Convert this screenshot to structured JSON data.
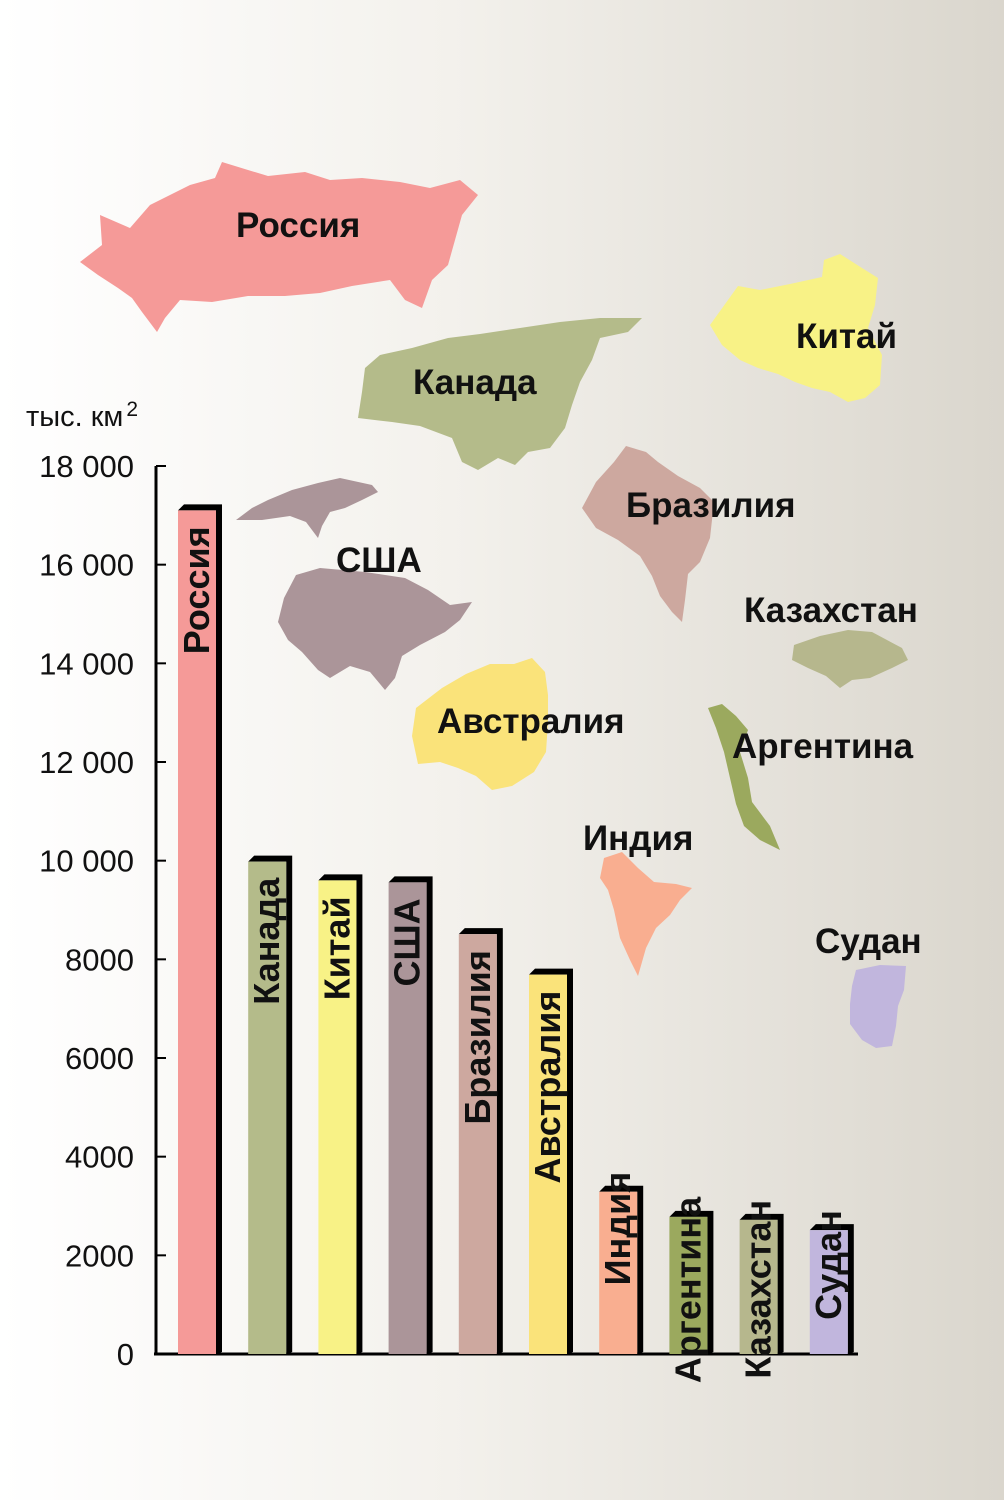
{
  "chart_data": {
    "type": "bar",
    "unit_label": "тыс. км",
    "unit_superscript": "2",
    "ylim": [
      0,
      18000
    ],
    "yticks": [
      0,
      2000,
      4000,
      6000,
      8000,
      10000,
      12000,
      14000,
      16000,
      18000
    ],
    "ytick_labels": [
      "0",
      "2000",
      "4000",
      "6000",
      "8000",
      "10 000",
      "12 000",
      "14 000",
      "16 000",
      "18 000"
    ],
    "categories": [
      "Россия",
      "Канада",
      "Китай",
      "США",
      "Бразилия",
      "Австралия",
      "Индия",
      "Аргентина",
      "Казахстан",
      "Судан"
    ],
    "values": [
      17100,
      9980,
      9600,
      9560,
      8510,
      7690,
      3290,
      2780,
      2720,
      2510
    ],
    "colors": [
      "#f59a98",
      "#b4bb8a",
      "#f8f286",
      "#ab9599",
      "#cda89f",
      "#fae37a",
      "#f9ae90",
      "#9ba95e",
      "#b6b78d",
      "#c1b6dd"
    ],
    "label_position": [
      "inside",
      "inside",
      "inside",
      "inside",
      "inside",
      "inside",
      "above",
      "above",
      "above",
      "above"
    ]
  },
  "map_labels": [
    "Россия",
    "Канада",
    "Китай",
    "США",
    "Бразилия",
    "Казахстан",
    "Австралия",
    "Аргентина",
    "Индия",
    "Судан"
  ],
  "map_colors": {
    "russia": "#f59a98",
    "canada": "#b4bb8a",
    "china": "#f8f286",
    "usa": "#ab9599",
    "brazil": "#cda89f",
    "kazakhstan": "#b6b78d",
    "australia": "#fae37a",
    "argentina": "#9ba95e",
    "india": "#f9ae90",
    "sudan": "#c1b6dd"
  }
}
